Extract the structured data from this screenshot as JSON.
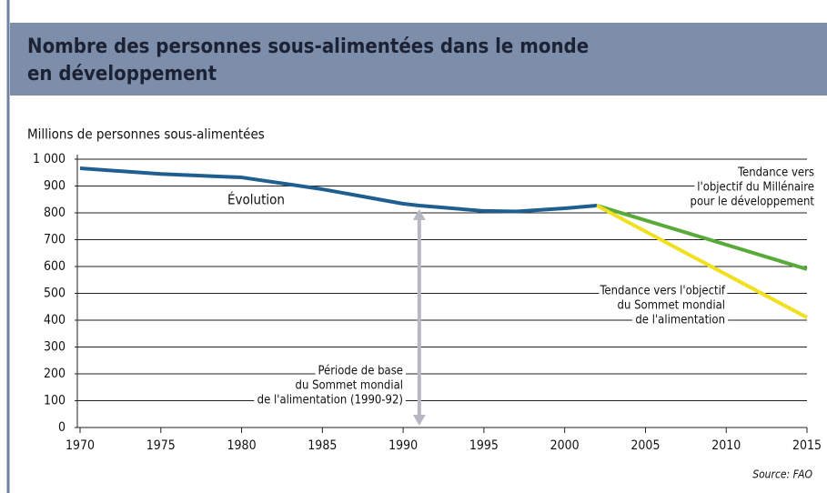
{
  "chart_data": {
    "type": "line",
    "title": [
      "Nombre des personnes sous-alimentées dans le monde",
      "en développement"
    ],
    "ylabel": "Millions de personnes sous-alimentées",
    "source": "Source: FAO",
    "xlim": [
      1970,
      2015
    ],
    "xticks": [
      1970,
      1975,
      1980,
      1985,
      1990,
      1995,
      2000,
      2005,
      2010,
      2015
    ],
    "ylim": [
      0,
      1000
    ],
    "yticks": [
      0,
      100,
      200,
      300,
      400,
      500,
      600,
      700,
      800,
      900,
      {
        "value": 1000,
        "label": "1 000"
      }
    ],
    "grid": true,
    "series": [
      {
        "color": "#1f5f8f",
        "x": [
          1970,
          1975,
          1980,
          1985,
          1990,
          1991,
          1995,
          1997,
          2000,
          2002
        ],
        "values": [
          966,
          945,
          932,
          888,
          834,
          827,
          807,
          805,
          817,
          827
        ]
      },
      {
        "color": "#5aaa3a",
        "x": [
          2002,
          2015
        ],
        "values": [
          827,
          590
        ]
      },
      {
        "color": "#f0e020",
        "x": [
          2002,
          2015
        ],
        "values": [
          827,
          410
        ]
      }
    ],
    "annotations": [
      {
        "lines": [
          "Évolution"
        ]
      },
      {
        "lines": [
          "Tendance vers",
          "l'objectif du Millénaire",
          "pour le développement"
        ]
      },
      {
        "lines": [
          "Tendance vers l'objectif",
          "du Sommet mondial",
          "de l'alimentation"
        ]
      },
      {
        "lines": [
          "Période de base",
          "du Sommet mondial",
          "de l'alimentation (1990-92)"
        ]
      }
    ]
  }
}
